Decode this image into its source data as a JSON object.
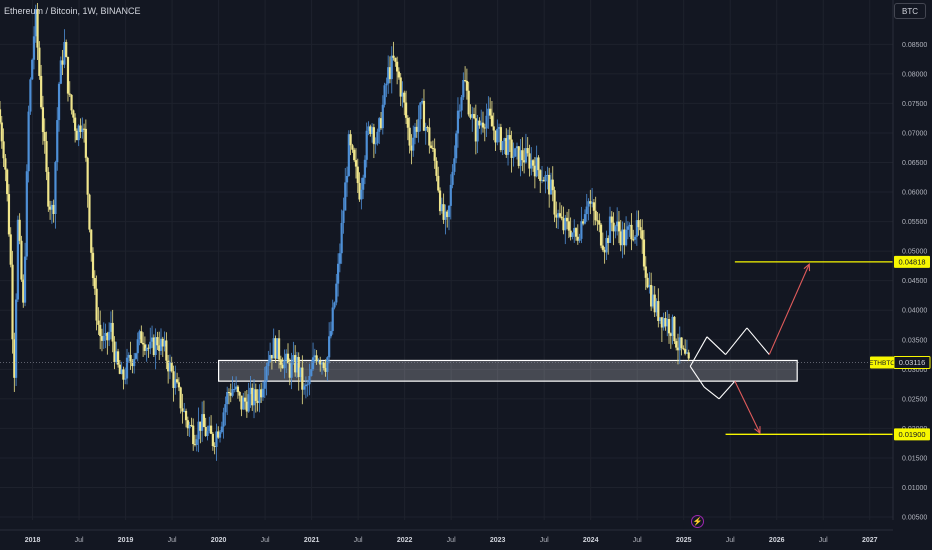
{
  "header": {
    "symbol_title": "Ethereum / Bitcoin, 1W, BINANCE",
    "currency_label": "BTC"
  },
  "icons": {
    "bolt": "lightning-bolt-icon"
  },
  "colors": {
    "background": "#131722",
    "candle_up": "#4e8fd6",
    "candle_down": "#f0e68c",
    "level_line": "#f7f700",
    "zone_border": "#ffffff",
    "projection_up": "#e05b5b",
    "projection_zigzag": "#ffffff"
  },
  "chart_data": {
    "type": "candlestick",
    "title": "Ethereum / Bitcoin, 1W, BINANCE",
    "y_axis": {
      "ticks": [
        "0.08500",
        "0.08000",
        "0.07500",
        "0.07000",
        "0.06500",
        "0.06000",
        "0.05500",
        "0.05000",
        "0.04500",
        "0.04000",
        "0.03500",
        "0.03000",
        "0.02500",
        "0.02000",
        "0.01500",
        "0.01000",
        "0.00500"
      ],
      "ylim": [
        0.0045,
        0.0925
      ]
    },
    "x_axis": {
      "ticks": [
        {
          "label": "2018",
          "t": 2018.0,
          "year": true
        },
        {
          "label": "Jul",
          "t": 2018.5,
          "year": false
        },
        {
          "label": "2019",
          "t": 2019.0,
          "year": true
        },
        {
          "label": "Jul",
          "t": 2019.5,
          "year": false
        },
        {
          "label": "2020",
          "t": 2020.0,
          "year": true
        },
        {
          "label": "Jul",
          "t": 2020.5,
          "year": false
        },
        {
          "label": "2021",
          "t": 2021.0,
          "year": true
        },
        {
          "label": "Jul",
          "t": 2021.5,
          "year": false
        },
        {
          "label": "2022",
          "t": 2022.0,
          "year": true
        },
        {
          "label": "Jul",
          "t": 2022.5,
          "year": false
        },
        {
          "label": "2023",
          "t": 2023.0,
          "year": true
        },
        {
          "label": "Jul",
          "t": 2023.5,
          "year": false
        },
        {
          "label": "2024",
          "t": 2024.0,
          "year": true
        },
        {
          "label": "Jul",
          "t": 2024.5,
          "year": false
        },
        {
          "label": "2025",
          "t": 2025.0,
          "year": true
        },
        {
          "label": "Jul",
          "t": 2025.5,
          "year": false
        },
        {
          "label": "2026",
          "t": 2026.0,
          "year": true
        },
        {
          "label": "Jul",
          "t": 2026.5,
          "year": false
        },
        {
          "label": "2027",
          "t": 2027.0,
          "year": true
        }
      ],
      "xlim": [
        2017.65,
        2027.25
      ]
    },
    "price_path": [
      [
        2017.65,
        0.074
      ],
      [
        2017.72,
        0.066
      ],
      [
        2017.78,
        0.05
      ],
      [
        2017.82,
        0.028
      ],
      [
        2017.86,
        0.055
      ],
      [
        2017.92,
        0.04
      ],
      [
        2017.98,
        0.075
      ],
      [
        2018.05,
        0.09
      ],
      [
        2018.1,
        0.078
      ],
      [
        2018.18,
        0.06
      ],
      [
        2018.24,
        0.056
      ],
      [
        2018.3,
        0.078
      ],
      [
        2018.36,
        0.085
      ],
      [
        2018.42,
        0.075
      ],
      [
        2018.5,
        0.07
      ],
      [
        2018.56,
        0.073
      ],
      [
        2018.62,
        0.058
      ],
      [
        2018.68,
        0.043
      ],
      [
        2018.74,
        0.036
      ],
      [
        2018.8,
        0.034
      ],
      [
        2018.86,
        0.037
      ],
      [
        2018.92,
        0.031
      ],
      [
        2018.98,
        0.028
      ],
      [
        2019.05,
        0.031
      ],
      [
        2019.12,
        0.033
      ],
      [
        2019.2,
        0.036
      ],
      [
        2019.28,
        0.033
      ],
      [
        2019.36,
        0.035
      ],
      [
        2019.44,
        0.033
      ],
      [
        2019.52,
        0.029
      ],
      [
        2019.6,
        0.025
      ],
      [
        2019.68,
        0.021
      ],
      [
        2019.76,
        0.019
      ],
      [
        2019.82,
        0.021
      ],
      [
        2019.9,
        0.019
      ],
      [
        2019.96,
        0.018
      ],
      [
        2020.04,
        0.021
      ],
      [
        2020.12,
        0.026
      ],
      [
        2020.18,
        0.027
      ],
      [
        2020.26,
        0.024
      ],
      [
        2020.34,
        0.025
      ],
      [
        2020.42,
        0.025
      ],
      [
        2020.48,
        0.027
      ],
      [
        2020.54,
        0.032
      ],
      [
        2020.62,
        0.034
      ],
      [
        2020.7,
        0.032
      ],
      [
        2020.78,
        0.03
      ],
      [
        2020.86,
        0.031
      ],
      [
        2020.94,
        0.026
      ],
      [
        2021.0,
        0.028
      ],
      [
        2021.06,
        0.033
      ],
      [
        2021.12,
        0.032
      ],
      [
        2021.18,
        0.031
      ],
      [
        2021.24,
        0.038
      ],
      [
        2021.3,
        0.046
      ],
      [
        2021.36,
        0.057
      ],
      [
        2021.42,
        0.068
      ],
      [
        2021.48,
        0.064
      ],
      [
        2021.54,
        0.06
      ],
      [
        2021.6,
        0.068
      ],
      [
        2021.66,
        0.072
      ],
      [
        2021.72,
        0.068
      ],
      [
        2021.78,
        0.074
      ],
      [
        2021.84,
        0.08
      ],
      [
        2021.9,
        0.082
      ],
      [
        2021.96,
        0.079
      ],
      [
        2022.02,
        0.074
      ],
      [
        2022.08,
        0.068
      ],
      [
        2022.14,
        0.071
      ],
      [
        2022.2,
        0.074
      ],
      [
        2022.28,
        0.069
      ],
      [
        2022.36,
        0.064
      ],
      [
        2022.42,
        0.056
      ],
      [
        2022.48,
        0.054
      ],
      [
        2022.54,
        0.065
      ],
      [
        2022.6,
        0.075
      ],
      [
        2022.66,
        0.079
      ],
      [
        2022.72,
        0.074
      ],
      [
        2022.78,
        0.07
      ],
      [
        2022.84,
        0.072
      ],
      [
        2022.9,
        0.073
      ],
      [
        2022.96,
        0.071
      ],
      [
        2023.04,
        0.069
      ],
      [
        2023.12,
        0.068
      ],
      [
        2023.2,
        0.066
      ],
      [
        2023.3,
        0.066
      ],
      [
        2023.4,
        0.065
      ],
      [
        2023.5,
        0.063
      ],
      [
        2023.58,
        0.061
      ],
      [
        2023.64,
        0.057
      ],
      [
        2023.72,
        0.054
      ],
      [
        2023.8,
        0.054
      ],
      [
        2023.86,
        0.052
      ],
      [
        2023.92,
        0.055
      ],
      [
        2023.98,
        0.059
      ],
      [
        2024.06,
        0.056
      ],
      [
        2024.12,
        0.053
      ],
      [
        2024.18,
        0.051
      ],
      [
        2024.24,
        0.055
      ],
      [
        2024.3,
        0.054
      ],
      [
        2024.38,
        0.052
      ],
      [
        2024.46,
        0.054
      ],
      [
        2024.54,
        0.053
      ],
      [
        2024.6,
        0.048
      ],
      [
        2024.66,
        0.043
      ],
      [
        2024.72,
        0.04
      ],
      [
        2024.78,
        0.039
      ],
      [
        2024.84,
        0.038
      ],
      [
        2024.9,
        0.037
      ],
      [
        2024.96,
        0.034
      ],
      [
        2025.02,
        0.032
      ],
      [
        2025.07,
        0.0305
      ]
    ],
    "support_zone": {
      "t_start": 2020.0,
      "t_end": 2026.22,
      "price_low": 0.028,
      "price_high": 0.0315
    },
    "levels": [
      {
        "label": "0.04818",
        "price": 0.04818,
        "t_start": 2025.55,
        "color": "#f7f700"
      },
      {
        "label": "0.01900",
        "price": 0.019,
        "t_start": 2025.45,
        "color": "#f7f700"
      }
    ],
    "current_price": {
      "symbol": "ETHBTC",
      "label": "0.03116",
      "price": 0.03116
    },
    "projection_up": [
      [
        2025.07,
        0.0305
      ],
      [
        2025.25,
        0.0355
      ],
      [
        2025.45,
        0.0325
      ],
      [
        2025.68,
        0.037
      ],
      [
        2025.92,
        0.0325
      ],
      [
        2026.35,
        0.0478
      ]
    ],
    "projection_down": [
      [
        2025.07,
        0.0305
      ],
      [
        2025.22,
        0.027
      ],
      [
        2025.38,
        0.025
      ],
      [
        2025.55,
        0.028
      ],
      [
        2025.82,
        0.0192
      ]
    ]
  }
}
